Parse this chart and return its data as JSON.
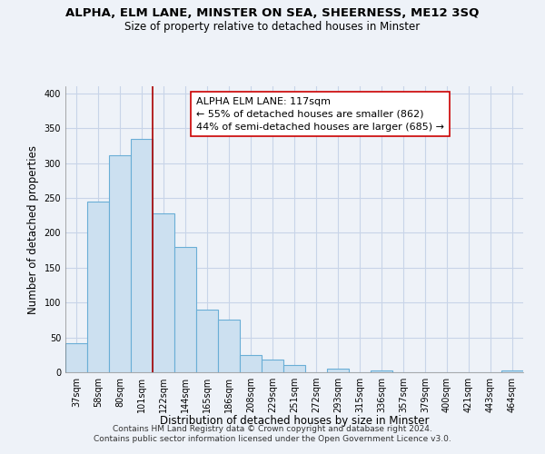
{
  "title": "ALPHA, ELM LANE, MINSTER ON SEA, SHEERNESS, ME12 3SQ",
  "subtitle": "Size of property relative to detached houses in Minster",
  "xlabel": "Distribution of detached houses by size in Minster",
  "ylabel": "Number of detached properties",
  "bar_labels": [
    "37sqm",
    "58sqm",
    "80sqm",
    "101sqm",
    "122sqm",
    "144sqm",
    "165sqm",
    "186sqm",
    "208sqm",
    "229sqm",
    "251sqm",
    "272sqm",
    "293sqm",
    "315sqm",
    "336sqm",
    "357sqm",
    "379sqm",
    "400sqm",
    "421sqm",
    "443sqm",
    "464sqm"
  ],
  "bar_values": [
    42,
    245,
    311,
    334,
    228,
    180,
    90,
    75,
    25,
    18,
    10,
    0,
    5,
    0,
    2,
    0,
    0,
    0,
    0,
    0,
    2
  ],
  "bar_color": "#cce0f0",
  "bar_edge_color": "#6aaed6",
  "vline_x": 3.5,
  "vline_color": "#aa0000",
  "annotation_title": "ALPHA ELM LANE: 117sqm",
  "annotation_line1": "← 55% of detached houses are smaller (862)",
  "annotation_line2": "44% of semi-detached houses are larger (685) →",
  "annotation_box_color": "#ffffff",
  "annotation_box_edge": "#cc0000",
  "ylim": [
    0,
    410
  ],
  "yticks": [
    0,
    50,
    100,
    150,
    200,
    250,
    300,
    350,
    400
  ],
  "footer_line1": "Contains HM Land Registry data © Crown copyright and database right 2024.",
  "footer_line2": "Contains public sector information licensed under the Open Government Licence v3.0.",
  "bg_color": "#eef2f8",
  "plot_bg_color": "#eef2f8",
  "grid_color": "#c8d4e8",
  "title_fontsize": 9.5,
  "subtitle_fontsize": 8.5,
  "axis_label_fontsize": 8.5,
  "tick_fontsize": 7,
  "annotation_fontsize": 8,
  "footer_fontsize": 6.5
}
